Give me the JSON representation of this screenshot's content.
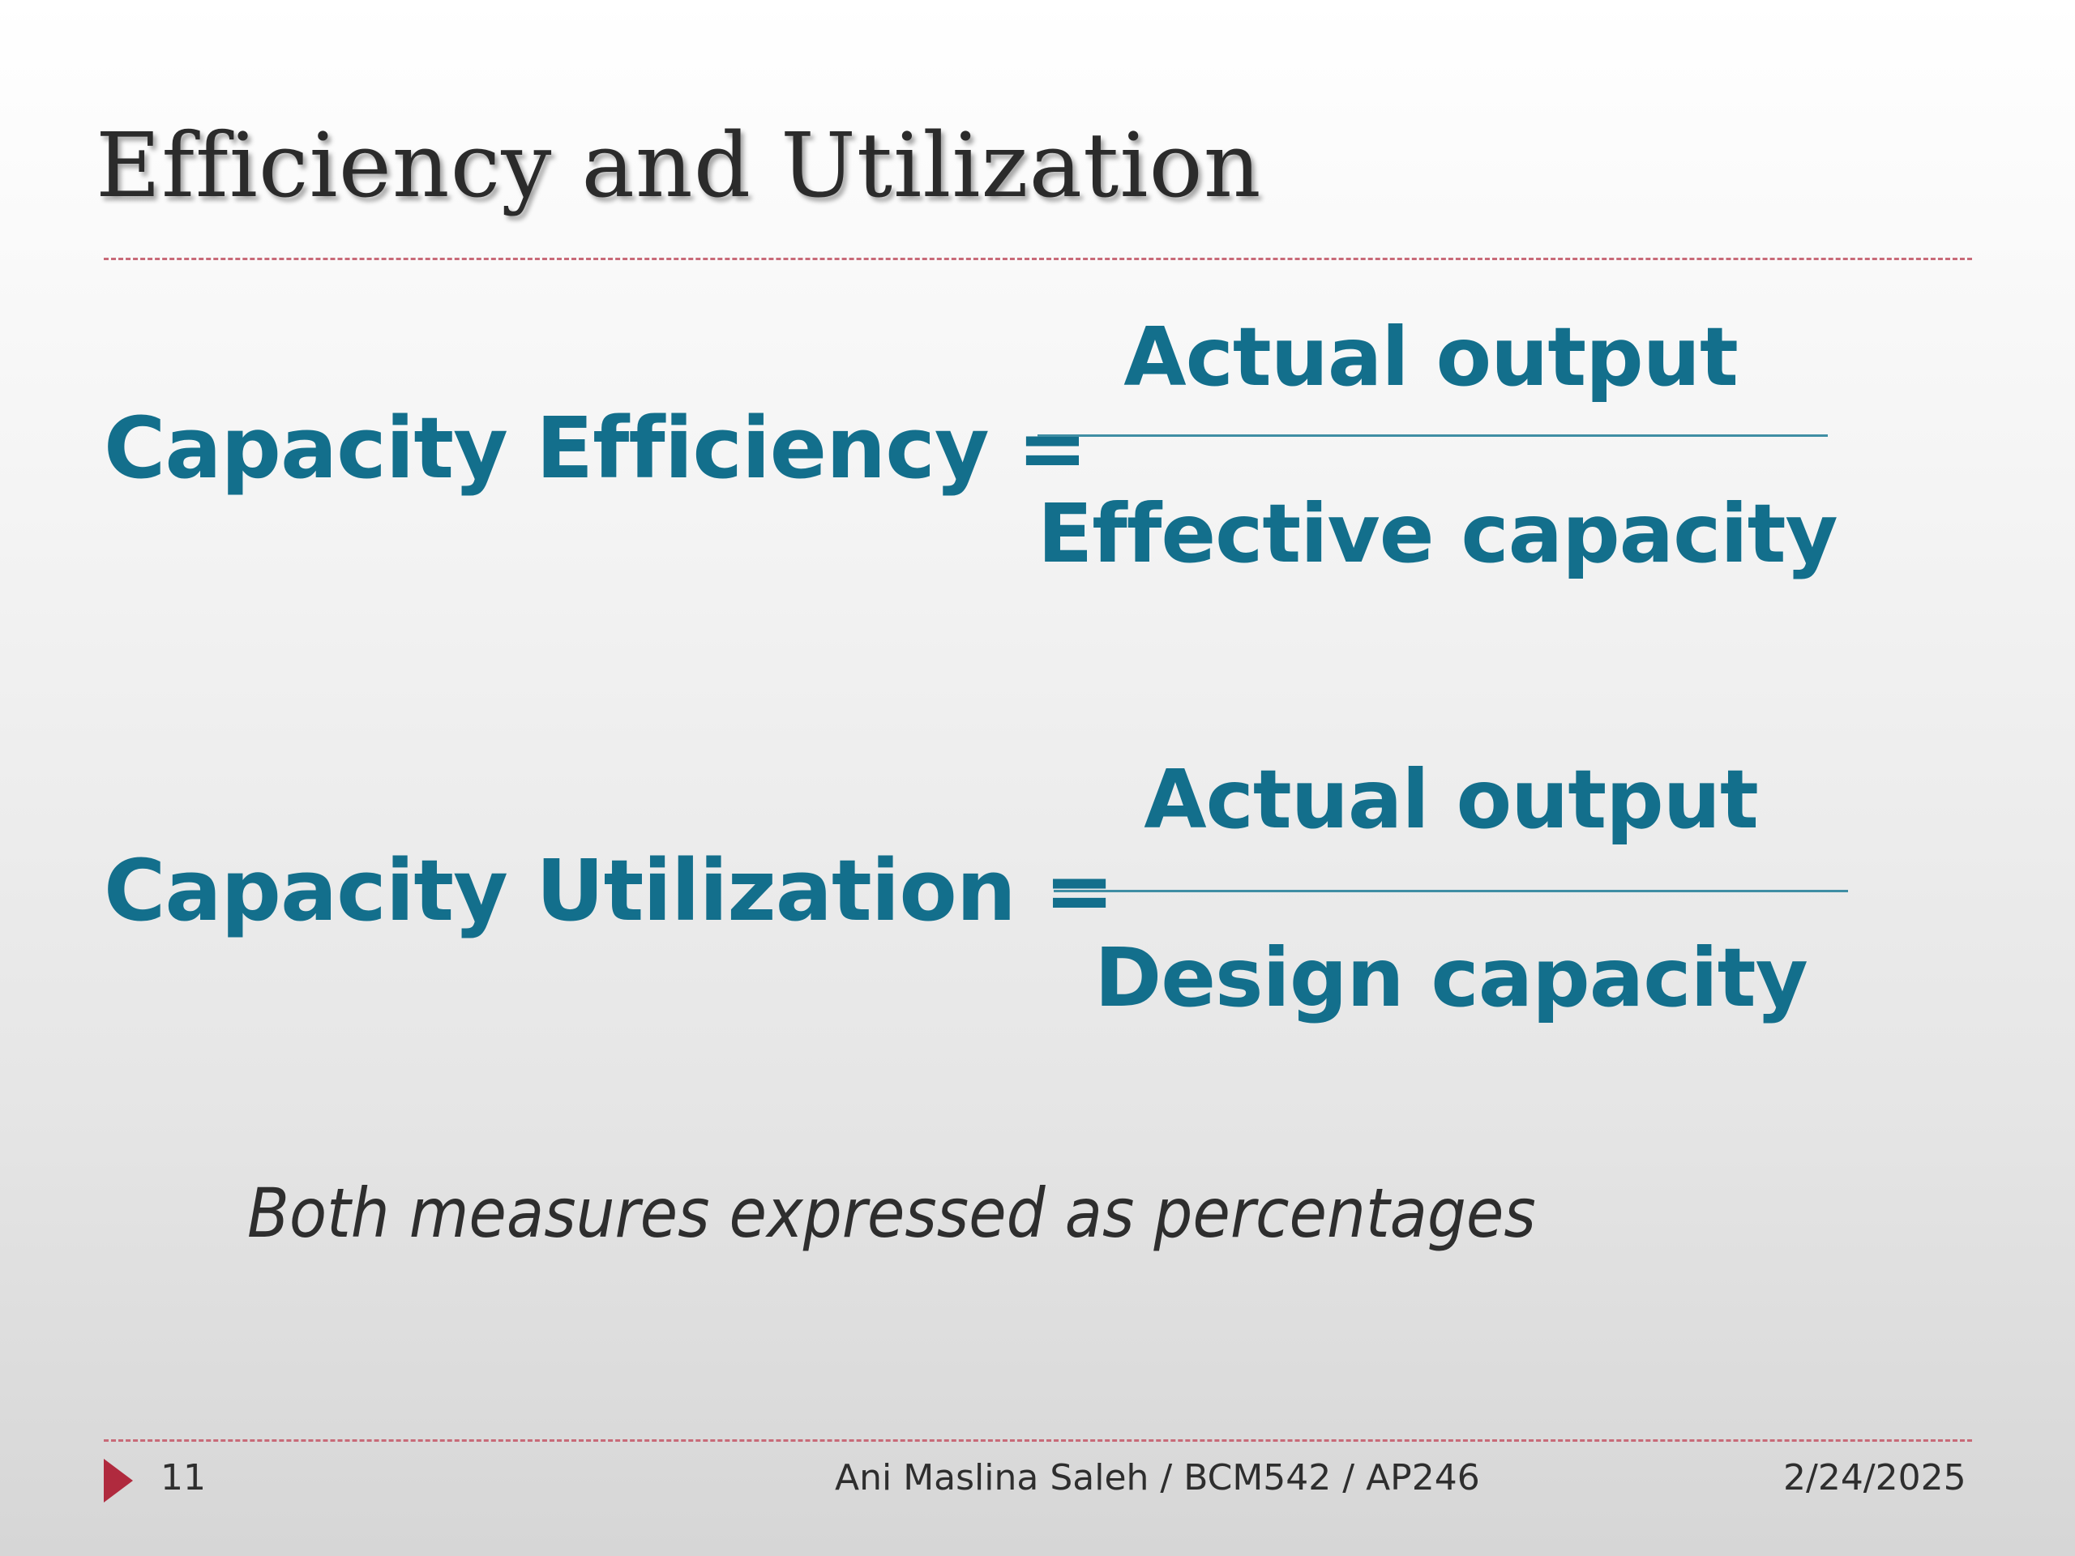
{
  "slide": {
    "title": "Efficiency and Utilization",
    "formulas": [
      {
        "lhs": "Capacity Efficiency =",
        "numerator": "Actual output",
        "denominator": "Effective capacity"
      },
      {
        "lhs": "Capacity Utilization =",
        "numerator": "Actual output",
        "denominator": "Design capacity"
      }
    ],
    "note": "Both measures expressed as percentages"
  },
  "footer": {
    "page_number": "11",
    "author_course": "Ani Maslina Saleh / BCM542 / AP246",
    "date": "2/24/2025"
  },
  "colors": {
    "accent_teal": "#136f8c",
    "divider_red": "#c86a78",
    "arrow_red": "#b02a3e"
  }
}
